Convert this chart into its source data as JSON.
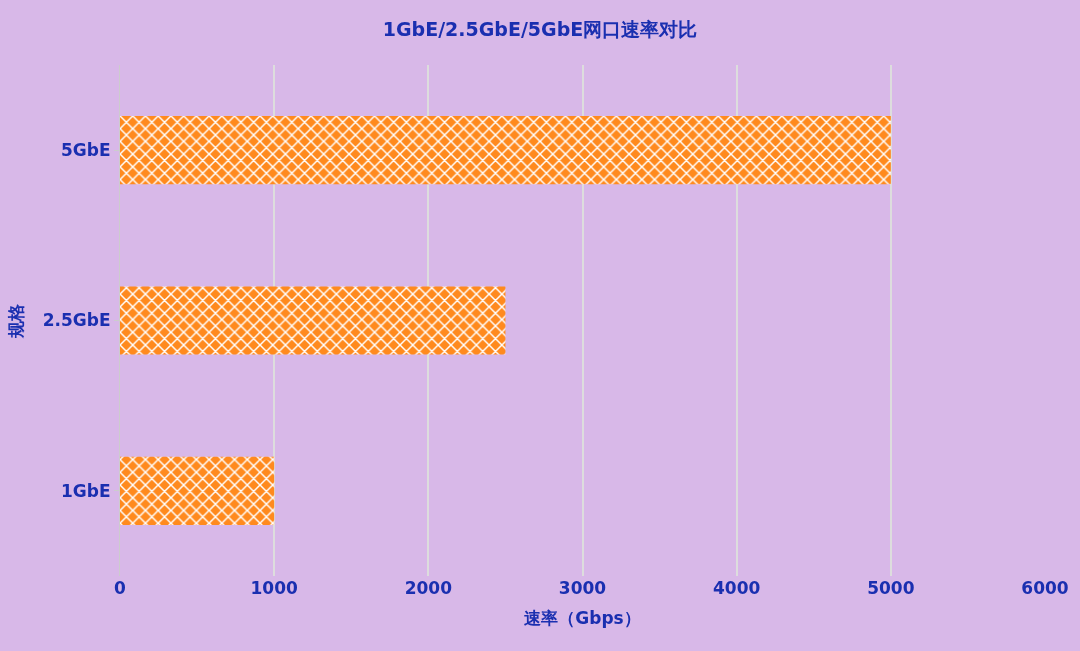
{
  "chart_data": {
    "type": "bar",
    "orientation": "horizontal",
    "title": "1GbE/2.5GbE/5GbE网口速率对比",
    "xlabel": "速率（Gbps）",
    "ylabel": "规格",
    "categories": [
      "5GbE",
      "2.5GbE",
      "1GbE"
    ],
    "series": [
      {
        "color": "#ff8a1e",
        "values": [
          5000,
          2500,
          1000
        ]
      }
    ],
    "xlim": [
      0,
      6000
    ],
    "xticks": [
      0,
      1000,
      2000,
      3000,
      4000,
      5000,
      6000
    ],
    "grid": "x",
    "legend": false
  }
}
